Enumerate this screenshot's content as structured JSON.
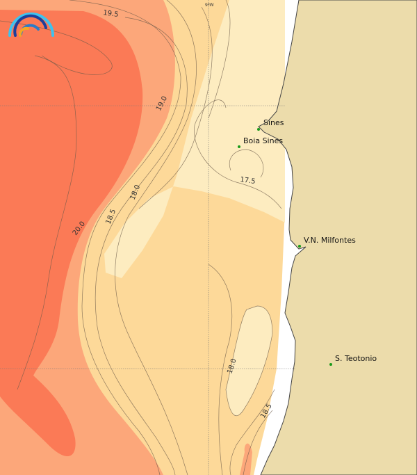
{
  "map": {
    "graticule": {
      "meridian_label": "9ºW"
    },
    "places": [
      {
        "name": "Sines"
      },
      {
        "name": "Boia Sines"
      },
      {
        "name": "V.N. Milfontes"
      },
      {
        "name": "S. Teotonio"
      }
    ],
    "contour_labels": [
      "19.5",
      "19.0",
      "18.0",
      "18.5",
      "20.0",
      "17.5",
      "18.0",
      "18.5"
    ],
    "colors": {
      "land": "#ecdcab",
      "sea_17_18": "#fdecc0",
      "sea_18_19": "#fdd999",
      "sea_19_20": "#fca77a",
      "sea_above_20": "#fb7a56",
      "place_marker": "#1a9a1a",
      "logo_outer": "#3ec3ef",
      "logo_inner": "#1d3f9a",
      "logo_core": "#f5a623"
    }
  }
}
